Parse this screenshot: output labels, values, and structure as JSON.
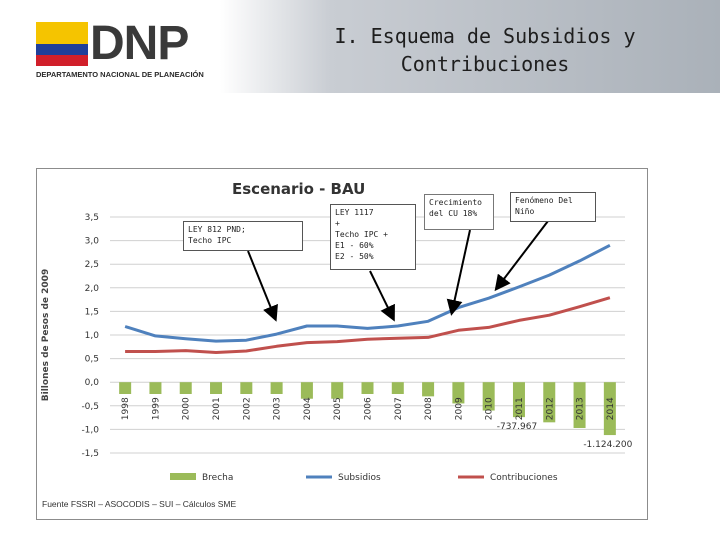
{
  "header": {
    "logo_text": "DNP",
    "logo_subtitle": "DEPARTAMENTO NACIONAL DE PLANEACIÓN",
    "title_line1": "I. Esquema de Subsidios y",
    "title_line2": "Contribuciones",
    "colors": {
      "flag_yellow": "#f5c400",
      "flag_blue": "#1f3f9a",
      "flag_red": "#d11f2a"
    }
  },
  "chart_data": {
    "type": "bar+line",
    "title": "Escenario - BAU",
    "ylabel": "Billones de Pesos de 2009",
    "xlabel": "",
    "ylim": [
      -1.5,
      3.5
    ],
    "yticks": [
      "3,5",
      "3,0",
      "2,5",
      "2,0",
      "1,5",
      "1,0",
      "0,5",
      "0,0",
      "-0,5",
      "-1,0",
      "-1,5"
    ],
    "ytick_values": [
      3.5,
      3.0,
      2.5,
      2.0,
      1.5,
      1.0,
      0.5,
      0.0,
      -0.5,
      -1.0,
      -1.5
    ],
    "categories": [
      "1998",
      "1999",
      "2000",
      "2001",
      "2002",
      "2003",
      "2004",
      "2005",
      "2006",
      "2007",
      "2008",
      "2009",
      "2010",
      "2011",
      "2012",
      "2013",
      "2014"
    ],
    "series": [
      {
        "name": "Brecha",
        "kind": "bar",
        "color": "#9bbb59",
        "values": [
          -0.25,
          -0.25,
          -0.25,
          -0.25,
          -0.25,
          -0.25,
          -0.35,
          -0.35,
          -0.25,
          -0.25,
          -0.3,
          -0.45,
          -0.6,
          -0.74,
          -0.85,
          -0.97,
          -1.12
        ]
      },
      {
        "name": "Subsidios",
        "kind": "line",
        "color": "#4f81bd",
        "values": [
          1.18,
          0.98,
          0.92,
          0.87,
          0.89,
          1.02,
          1.19,
          1.19,
          1.14,
          1.19,
          1.29,
          1.58,
          1.78,
          2.02,
          2.27,
          2.57,
          2.9
        ]
      },
      {
        "name": "Contribuciones",
        "kind": "line",
        "color": "#c0504d",
        "values": [
          0.65,
          0.65,
          0.67,
          0.63,
          0.66,
          0.76,
          0.84,
          0.86,
          0.91,
          0.93,
          0.95,
          1.1,
          1.16,
          1.31,
          1.42,
          1.6,
          1.79
        ]
      }
    ],
    "data_labels": [
      {
        "category": "2011",
        "text": "-737.967"
      },
      {
        "category": "2014",
        "text": "-1.124.200"
      }
    ],
    "legend": [
      "Brecha",
      "Subsidios",
      "Contribuciones"
    ],
    "legend_position": "bottom",
    "annotations": [
      {
        "text": "LEY 812 PND;\nTecho IPC",
        "points_to": "2003"
      },
      {
        "text": "LEY 1117\n+\nTecho IPC +\nE1 - 60%\nE2 - 50%",
        "points_to": "2007"
      },
      {
        "text": "Crecimiento\ndel CU 18%",
        "points_to": "2009"
      },
      {
        "text": "Fenómeno Del\nNiño",
        "points_to": "2010"
      }
    ]
  },
  "source": "Fuente FSSRI – ASOCODIS – SUI – Cálculos SME"
}
